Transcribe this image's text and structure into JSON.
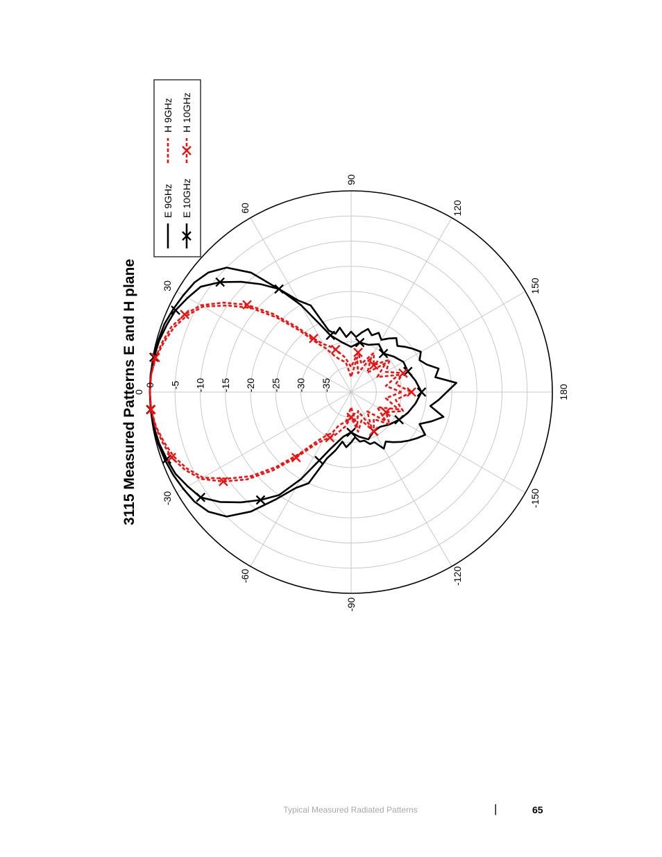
{
  "chart_data": {
    "type": "line",
    "projection": "polar",
    "orientation": "rotated 90 degrees counter-clockwise on the page",
    "title": "3115 Measured Patterns E and H plane",
    "angle_unit": "degrees",
    "angle_ticks": [
      0,
      30,
      60,
      90,
      120,
      150,
      180,
      -150,
      -120,
      -90,
      -60,
      -30
    ],
    "radial_ticks": [
      0,
      -5,
      -10,
      -15,
      -20,
      -25,
      -30,
      -35
    ],
    "rlim": [
      -40,
      0
    ],
    "grid": true,
    "legend_position": "top-right",
    "series": [
      {
        "name": "E 9GHz",
        "color": "#000000",
        "style": "solid",
        "marker": "none",
        "points": [
          [
            -180,
            -21
          ],
          [
            -175,
            -22.5
          ],
          [
            -170,
            -24
          ],
          [
            -165,
            -21
          ],
          [
            -160,
            -23
          ],
          [
            -155,
            -25
          ],
          [
            -150,
            -23
          ],
          [
            -145,
            -24
          ],
          [
            -140,
            -25
          ],
          [
            -135,
            -26
          ],
          [
            -130,
            -27
          ],
          [
            -125,
            -28
          ],
          [
            -120,
            -27
          ],
          [
            -115,
            -29
          ],
          [
            -110,
            -29
          ],
          [
            -105,
            -30
          ],
          [
            -100,
            -30
          ],
          [
            -95,
            -31
          ],
          [
            -90,
            -30
          ],
          [
            -85,
            -29
          ],
          [
            -80,
            -30
          ],
          [
            -75,
            -28
          ],
          [
            -70,
            -26
          ],
          [
            -65,
            -20
          ],
          [
            -60,
            -18
          ],
          [
            -55,
            -14
          ],
          [
            -50,
            -9
          ],
          [
            -45,
            -5
          ],
          [
            -40,
            -3
          ],
          [
            -35,
            -2
          ],
          [
            -30,
            -1.5
          ],
          [
            -25,
            -1
          ],
          [
            -20,
            -0.6
          ],
          [
            -15,
            -0.3
          ],
          [
            -10,
            -0.1
          ],
          [
            -5,
            0
          ],
          [
            0,
            0
          ],
          [
            5,
            0
          ],
          [
            10,
            -0.1
          ],
          [
            15,
            -0.3
          ],
          [
            20,
            -0.5
          ],
          [
            25,
            -1
          ],
          [
            30,
            -1.5
          ],
          [
            35,
            -2
          ],
          [
            40,
            -3
          ],
          [
            45,
            -5
          ],
          [
            50,
            -9
          ],
          [
            55,
            -15
          ],
          [
            60,
            -19
          ],
          [
            65,
            -21
          ],
          [
            70,
            -27
          ],
          [
            75,
            -28
          ],
          [
            80,
            -27
          ],
          [
            85,
            -29
          ],
          [
            90,
            -28
          ],
          [
            95,
            -29
          ],
          [
            100,
            -28
          ],
          [
            105,
            -27
          ],
          [
            110,
            -28
          ],
          [
            115,
            -27
          ],
          [
            120,
            -28
          ],
          [
            125,
            -27
          ],
          [
            130,
            -26
          ],
          [
            135,
            -27
          ],
          [
            140,
            -26
          ],
          [
            145,
            -25
          ],
          [
            150,
            -24
          ],
          [
            155,
            -25
          ],
          [
            160,
            -24
          ],
          [
            165,
            -22
          ],
          [
            170,
            -23
          ],
          [
            175,
            -19
          ],
          [
            180,
            -21
          ]
        ]
      },
      {
        "name": "E 10GHz",
        "color": "#000000",
        "style": "solid",
        "marker": "x",
        "points": [
          [
            -180,
            -26
          ],
          [
            -170,
            -27
          ],
          [
            -160,
            -28
          ],
          [
            -150,
            -29
          ],
          [
            -140,
            -30
          ],
          [
            -130,
            -31
          ],
          [
            -120,
            -31
          ],
          [
            -110,
            -30
          ],
          [
            -100,
            -31
          ],
          [
            -90,
            -32
          ],
          [
            -80,
            -31
          ],
          [
            -70,
            -28
          ],
          [
            -65,
            -25
          ],
          [
            -60,
            -20
          ],
          [
            -55,
            -15
          ],
          [
            -50,
            -12
          ],
          [
            -45,
            -9
          ],
          [
            -40,
            -6
          ],
          [
            -35,
            -3.5
          ],
          [
            -30,
            -2.5
          ],
          [
            -25,
            -1.5
          ],
          [
            -20,
            -1
          ],
          [
            -15,
            -0.5
          ],
          [
            -10,
            -0.2
          ],
          [
            -5,
            0
          ],
          [
            0,
            0
          ],
          [
            5,
            0
          ],
          [
            10,
            -0.2
          ],
          [
            15,
            -0.5
          ],
          [
            20,
            -1
          ],
          [
            25,
            -1.5
          ],
          [
            30,
            -2.5
          ],
          [
            35,
            -3.5
          ],
          [
            40,
            -6
          ],
          [
            45,
            -9
          ],
          [
            50,
            -12
          ],
          [
            55,
            -15
          ],
          [
            60,
            -20
          ],
          [
            65,
            -25
          ],
          [
            70,
            -28
          ],
          [
            80,
            -30
          ],
          [
            90,
            -31
          ],
          [
            100,
            -30
          ],
          [
            110,
            -30
          ],
          [
            120,
            -29
          ],
          [
            130,
            -30
          ],
          [
            140,
            -29
          ],
          [
            150,
            -28
          ],
          [
            160,
            -28
          ],
          [
            170,
            -27
          ],
          [
            180,
            -26
          ]
        ]
      },
      {
        "name": "H 9GHz",
        "color": "#ee1111",
        "style": "dashed",
        "marker": "none",
        "points": [
          [
            -180,
            -30
          ],
          [
            -170,
            -33
          ],
          [
            -160,
            -30
          ],
          [
            -150,
            -34
          ],
          [
            -140,
            -31
          ],
          [
            -130,
            -35
          ],
          [
            -120,
            -32
          ],
          [
            -110,
            -36
          ],
          [
            -100,
            -33
          ],
          [
            -90,
            -37
          ],
          [
            -80,
            -34
          ],
          [
            -70,
            -33
          ],
          [
            -65,
            -31
          ],
          [
            -60,
            -30
          ],
          [
            -55,
            -28
          ],
          [
            -50,
            -24
          ],
          [
            -45,
            -19
          ],
          [
            -40,
            -14
          ],
          [
            -35,
            -10
          ],
          [
            -30,
            -6
          ],
          [
            -25,
            -4
          ],
          [
            -20,
            -2.5
          ],
          [
            -15,
            -1.5
          ],
          [
            -10,
            -0.6
          ],
          [
            -5,
            -0.1
          ],
          [
            0,
            0
          ],
          [
            5,
            -0.1
          ],
          [
            10,
            -0.6
          ],
          [
            15,
            -1.5
          ],
          [
            20,
            -2.5
          ],
          [
            25,
            -4
          ],
          [
            30,
            -6
          ],
          [
            35,
            -10
          ],
          [
            40,
            -14
          ],
          [
            45,
            -19
          ],
          [
            50,
            -24
          ],
          [
            55,
            -28
          ],
          [
            60,
            -30
          ],
          [
            65,
            -32
          ],
          [
            70,
            -33
          ],
          [
            80,
            -34
          ],
          [
            90,
            -37
          ],
          [
            100,
            -33
          ],
          [
            110,
            -36
          ],
          [
            120,
            -32
          ],
          [
            130,
            -35
          ],
          [
            140,
            -31
          ],
          [
            150,
            -34
          ],
          [
            160,
            -30
          ],
          [
            170,
            -33
          ],
          [
            180,
            -30
          ]
        ]
      },
      {
        "name": "H 10GHz",
        "color": "#ee1111",
        "style": "dashed",
        "marker": "x",
        "points": [
          [
            -180,
            -28
          ],
          [
            -170,
            -31
          ],
          [
            -160,
            -29
          ],
          [
            -150,
            -32
          ],
          [
            -140,
            -30
          ],
          [
            -130,
            -33
          ],
          [
            -120,
            -31
          ],
          [
            -110,
            -34
          ],
          [
            -100,
            -32
          ],
          [
            -90,
            -35
          ],
          [
            -80,
            -33
          ],
          [
            -70,
            -31
          ],
          [
            -65,
            -30
          ],
          [
            -60,
            -29
          ],
          [
            -55,
            -27
          ],
          [
            -50,
            -23
          ],
          [
            -45,
            -18
          ],
          [
            -40,
            -13
          ],
          [
            -35,
            -9
          ],
          [
            -30,
            -5.5
          ],
          [
            -25,
            -3.5
          ],
          [
            -20,
            -2
          ],
          [
            -15,
            -1.2
          ],
          [
            -10,
            -0.5
          ],
          [
            -5,
            -0.1
          ],
          [
            0,
            0
          ],
          [
            5,
            -0.1
          ],
          [
            10,
            -0.5
          ],
          [
            15,
            -1.2
          ],
          [
            20,
            -2
          ],
          [
            25,
            -3.5
          ],
          [
            30,
            -5.5
          ],
          [
            35,
            -9
          ],
          [
            40,
            -13
          ],
          [
            45,
            -18
          ],
          [
            50,
            -23
          ],
          [
            55,
            -27
          ],
          [
            60,
            -29
          ],
          [
            65,
            -30
          ],
          [
            70,
            -31
          ],
          [
            80,
            -33
          ],
          [
            90,
            -35
          ],
          [
            100,
            -32
          ],
          [
            110,
            -34
          ],
          [
            120,
            -31
          ],
          [
            130,
            -33
          ],
          [
            140,
            -30
          ],
          [
            150,
            -32
          ],
          [
            160,
            -29
          ],
          [
            170,
            -31
          ],
          [
            180,
            -28
          ]
        ]
      }
    ]
  },
  "footer": {
    "section_title": "Typical Measured Radiated Patterns",
    "separator": "|",
    "page_number": "65"
  }
}
